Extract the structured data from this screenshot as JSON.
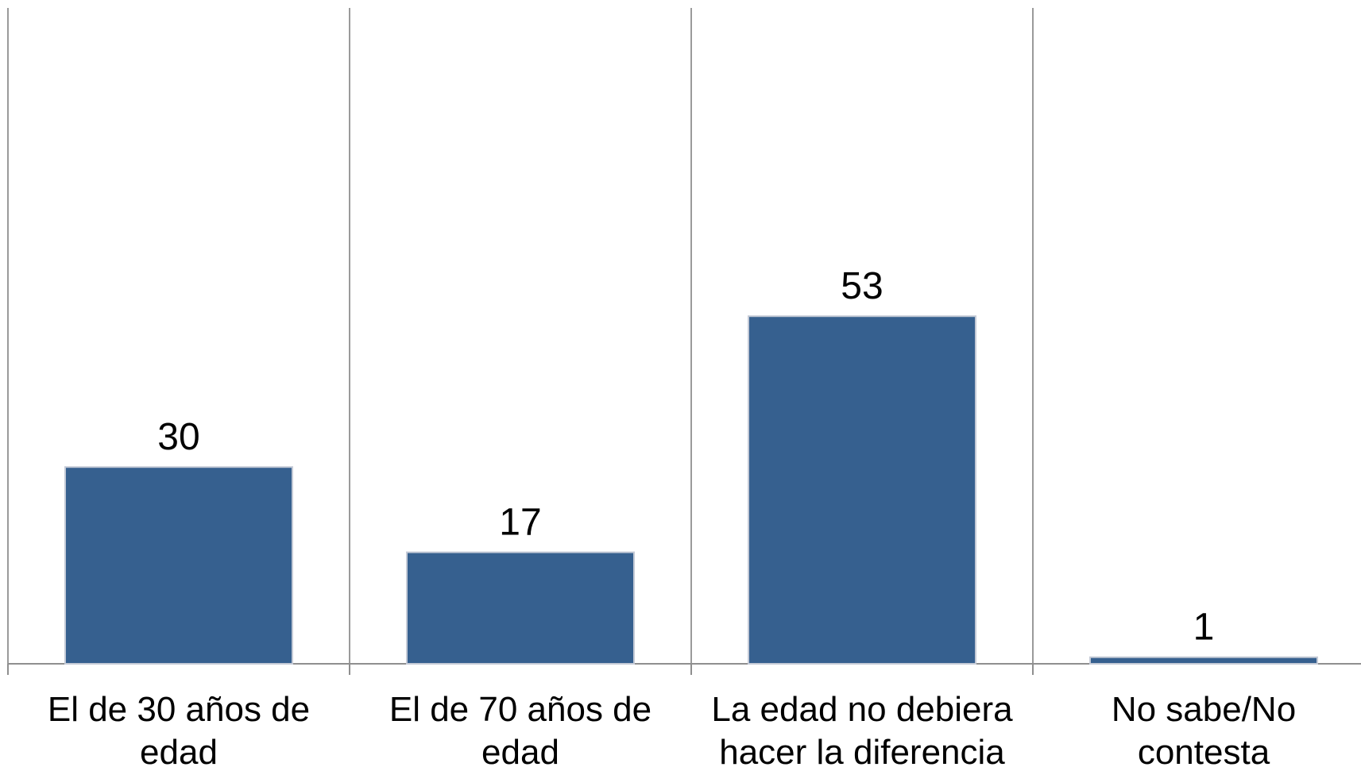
{
  "chart_data": {
    "type": "bar",
    "categories": [
      [
        "El de 30 años de",
        "edad"
      ],
      [
        "El de 70 años de",
        "edad"
      ],
      [
        "La edad no debiera",
        "hacer la diferencia"
      ],
      [
        "No sabe/No",
        "contesta"
      ]
    ],
    "values": [
      30,
      17,
      53,
      1
    ],
    "data_labels": [
      "30",
      "17",
      "53",
      "1"
    ],
    "title": "",
    "xlabel": "",
    "ylabel": "",
    "ylim": [
      0,
      100
    ],
    "grid": true,
    "legend": "none",
    "colors": {
      "bar": "#36608f",
      "bar_border": "#c4cad6",
      "grid": "#9a9a9a"
    }
  }
}
